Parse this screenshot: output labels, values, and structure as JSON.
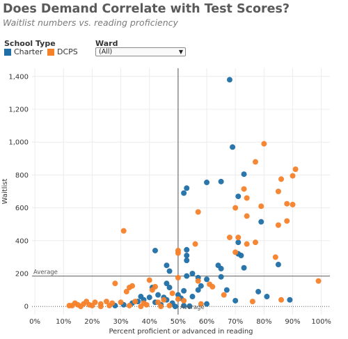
{
  "title": "Does Demand Correlate with Test Scores?",
  "subtitle": "Waitlist numbers vs. reading proficiency",
  "legend": {
    "title": "School Type",
    "items": [
      {
        "label": "Charter",
        "color": "#1f6fa6"
      },
      {
        "label": "DCPS",
        "color": "#f5812a"
      }
    ]
  },
  "ward_filter": {
    "title": "Ward",
    "value": "(All)"
  },
  "reference_lines": {
    "x_label": "Average",
    "y_label": "Average",
    "x_value": 0.5,
    "y_value": 185
  },
  "chart_data": {
    "type": "scatter",
    "xlabel": "Percent proficient or advanced in reading",
    "ylabel": "Waitlist",
    "xlim": [
      -0.01,
      1.03
    ],
    "ylim": [
      -50,
      1450
    ],
    "x_ticks": [
      0,
      0.1,
      0.2,
      0.3,
      0.4,
      0.5,
      0.6,
      0.7,
      0.8,
      0.9,
      1.0
    ],
    "x_tick_labels": [
      "0%",
      "10%",
      "20%",
      "30%",
      "40%",
      "50%",
      "60%",
      "70%",
      "80%",
      "90%",
      "100%"
    ],
    "y_ticks": [
      0,
      200,
      400,
      600,
      800,
      1000,
      1200,
      1400
    ],
    "y_tick_labels": [
      "0",
      "200",
      "400",
      "600",
      "800",
      "1,000",
      "1,200",
      "1,400"
    ],
    "grid": true,
    "series": [
      {
        "name": "Charter",
        "color": "#1f6fa6",
        "points": [
          [
            0.68,
            1380
          ],
          [
            0.69,
            970
          ],
          [
            0.73,
            805
          ],
          [
            0.65,
            760
          ],
          [
            0.6,
            755
          ],
          [
            0.53,
            720
          ],
          [
            0.52,
            690
          ],
          [
            0.71,
            670
          ],
          [
            0.79,
            515
          ],
          [
            0.71,
            390
          ],
          [
            0.71,
            320
          ],
          [
            0.72,
            310
          ],
          [
            0.42,
            340
          ],
          [
            0.53,
            345
          ],
          [
            0.53,
            310
          ],
          [
            0.53,
            280
          ],
          [
            0.46,
            250
          ],
          [
            0.47,
            215
          ],
          [
            0.64,
            250
          ],
          [
            0.65,
            230
          ],
          [
            0.73,
            235
          ],
          [
            0.85,
            255
          ],
          [
            0.55,
            200
          ],
          [
            0.53,
            185
          ],
          [
            0.57,
            175
          ],
          [
            0.6,
            165
          ],
          [
            0.65,
            180
          ],
          [
            0.58,
            125
          ],
          [
            0.57,
            100
          ],
          [
            0.52,
            95
          ],
          [
            0.46,
            140
          ],
          [
            0.47,
            115
          ],
          [
            0.41,
            115
          ],
          [
            0.37,
            60
          ],
          [
            0.38,
            40
          ],
          [
            0.4,
            55
          ],
          [
            0.43,
            70
          ],
          [
            0.45,
            55
          ],
          [
            0.46,
            40
          ],
          [
            0.5,
            70
          ],
          [
            0.51,
            50
          ],
          [
            0.55,
            60
          ],
          [
            0.48,
            20
          ],
          [
            0.44,
            10
          ],
          [
            0.42,
            25
          ],
          [
            0.36,
            30
          ],
          [
            0.34,
            20
          ],
          [
            0.31,
            10
          ],
          [
            0.28,
            5
          ],
          [
            0.52,
            5
          ],
          [
            0.54,
            2
          ],
          [
            0.49,
            0
          ],
          [
            0.6,
            15
          ],
          [
            0.67,
            100
          ],
          [
            0.78,
            90
          ],
          [
            0.81,
            60
          ],
          [
            0.89,
            40
          ],
          [
            0.7,
            35
          ]
        ]
      },
      {
        "name": "DCPS",
        "color": "#f5812a",
        "points": [
          [
            0.8,
            990
          ],
          [
            0.91,
            835
          ],
          [
            0.9,
            795
          ],
          [
            0.77,
            880
          ],
          [
            0.86,
            775
          ],
          [
            0.73,
            715
          ],
          [
            0.85,
            700
          ],
          [
            0.74,
            660
          ],
          [
            0.88,
            625
          ],
          [
            0.9,
            620
          ],
          [
            0.7,
            600
          ],
          [
            0.79,
            610
          ],
          [
            0.57,
            575
          ],
          [
            0.74,
            550
          ],
          [
            0.88,
            520
          ],
          [
            0.85,
            495
          ],
          [
            0.31,
            460
          ],
          [
            0.71,
            420
          ],
          [
            0.68,
            420
          ],
          [
            0.77,
            390
          ],
          [
            0.74,
            380
          ],
          [
            0.56,
            380
          ],
          [
            0.5,
            340
          ],
          [
            0.5,
            325
          ],
          [
            0.7,
            330
          ],
          [
            0.84,
            300
          ],
          [
            0.99,
            155
          ],
          [
            0.5,
            175
          ],
          [
            0.57,
            155
          ],
          [
            0.61,
            135
          ],
          [
            0.62,
            120
          ],
          [
            0.66,
            70
          ],
          [
            0.4,
            160
          ],
          [
            0.33,
            115
          ],
          [
            0.34,
            125
          ],
          [
            0.42,
            120
          ],
          [
            0.41,
            100
          ],
          [
            0.32,
            90
          ],
          [
            0.28,
            140
          ],
          [
            0.48,
            80
          ],
          [
            0.5,
            45
          ],
          [
            0.52,
            35
          ],
          [
            0.45,
            40
          ],
          [
            0.43,
            25
          ],
          [
            0.38,
            20
          ],
          [
            0.35,
            30
          ],
          [
            0.3,
            25
          ],
          [
            0.27,
            20
          ],
          [
            0.25,
            30
          ],
          [
            0.23,
            15
          ],
          [
            0.21,
            25
          ],
          [
            0.19,
            10
          ],
          [
            0.17,
            15
          ],
          [
            0.15,
            10
          ],
          [
            0.14,
            20
          ],
          [
            0.12,
            5
          ],
          [
            0.18,
            30
          ],
          [
            0.2,
            5
          ],
          [
            0.26,
            5
          ],
          [
            0.33,
            5
          ],
          [
            0.39,
            10
          ],
          [
            0.47,
            5
          ],
          [
            0.58,
            15
          ],
          [
            0.76,
            30
          ],
          [
            0.86,
            40
          ],
          [
            0.23,
            0
          ],
          [
            0.16,
            0
          ],
          [
            0.13,
            5
          ],
          [
            0.37,
            0
          ],
          [
            0.44,
            0
          ]
        ]
      }
    ]
  }
}
